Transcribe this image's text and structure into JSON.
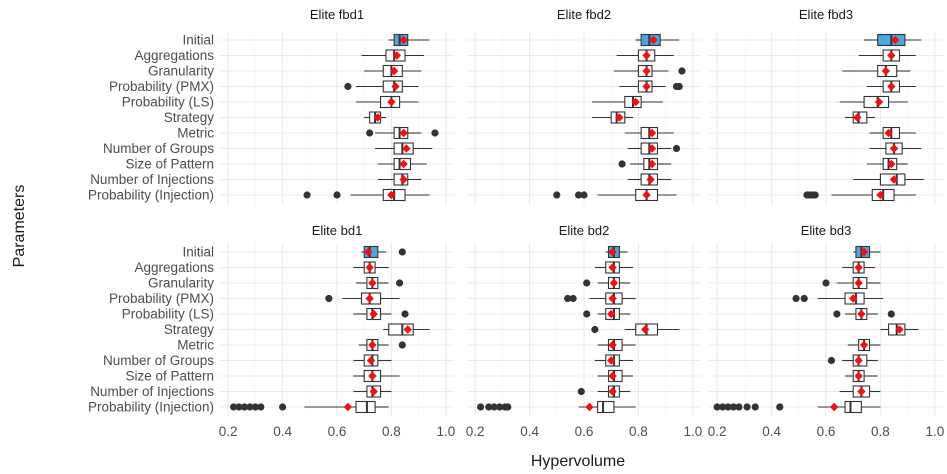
{
  "chart_data": {
    "type": "boxplot",
    "xlabel": "Hypervolume",
    "ylabel": "Parameters",
    "xlim": [
      0.17,
      1.03
    ],
    "x_ticks": [
      "0.2",
      "0.4",
      "0.6",
      "0.8",
      "1.0"
    ],
    "x_tick_values": [
      0.2,
      0.4,
      0.6,
      0.8,
      1.0
    ],
    "categories": [
      "Initial",
      "Aggregations",
      "Granularity",
      "Probability (PMX)",
      "Probability (LS)",
      "Strategy",
      "Metric",
      "Number of Groups",
      "Size of Pattern",
      "Number of Injections",
      "Probability (Injection)"
    ],
    "colors": {
      "initial_fill": "#4da6e0",
      "box_fill": "#ffffff",
      "mean": "#ee1111",
      "outline": "#333333"
    },
    "panels": [
      {
        "title": "Elite fbd1",
        "boxes": [
          {
            "q1": 0.81,
            "median": 0.83,
            "q3": 0.86,
            "lo": 0.79,
            "hi": 0.94,
            "mean": 0.845,
            "outliers": []
          },
          {
            "q1": 0.78,
            "median": 0.81,
            "q3": 0.85,
            "lo": 0.69,
            "hi": 0.92,
            "mean": 0.82,
            "outliers": []
          },
          {
            "q1": 0.77,
            "median": 0.8,
            "q3": 0.84,
            "lo": 0.7,
            "hi": 0.91,
            "mean": 0.81,
            "outliers": []
          },
          {
            "q1": 0.77,
            "median": 0.81,
            "q3": 0.84,
            "lo": 0.67,
            "hi": 0.9,
            "mean": 0.815,
            "outliers": [
              0.64
            ]
          },
          {
            "q1": 0.76,
            "median": 0.8,
            "q3": 0.83,
            "lo": 0.67,
            "hi": 0.9,
            "mean": 0.8,
            "outliers": []
          },
          {
            "q1": 0.72,
            "median": 0.74,
            "q3": 0.76,
            "lo": 0.7,
            "hi": 0.78,
            "mean": 0.75,
            "outliers": []
          },
          {
            "q1": 0.81,
            "median": 0.83,
            "q3": 0.86,
            "lo": 0.74,
            "hi": 0.91,
            "mean": 0.845,
            "outliers": [
              0.72,
              0.96
            ]
          },
          {
            "q1": 0.81,
            "median": 0.84,
            "q3": 0.88,
            "lo": 0.74,
            "hi": 0.95,
            "mean": 0.855,
            "outliers": []
          },
          {
            "q1": 0.81,
            "median": 0.83,
            "q3": 0.87,
            "lo": 0.75,
            "hi": 0.93,
            "mean": 0.845,
            "outliers": []
          },
          {
            "q1": 0.81,
            "median": 0.84,
            "q3": 0.86,
            "lo": 0.75,
            "hi": 0.91,
            "mean": 0.845,
            "outliers": []
          },
          {
            "q1": 0.77,
            "median": 0.81,
            "q3": 0.85,
            "lo": 0.65,
            "hi": 0.94,
            "mean": 0.8,
            "outliers": [
              0.49,
              0.6
            ]
          }
        ]
      },
      {
        "title": "Elite fbd2",
        "boxes": [
          {
            "q1": 0.81,
            "median": 0.84,
            "q3": 0.88,
            "lo": 0.79,
            "hi": 0.95,
            "mean": 0.855,
            "outliers": []
          },
          {
            "q1": 0.8,
            "median": 0.83,
            "q3": 0.86,
            "lo": 0.72,
            "hi": 0.93,
            "mean": 0.83,
            "outliers": []
          },
          {
            "q1": 0.8,
            "median": 0.83,
            "q3": 0.85,
            "lo": 0.71,
            "hi": 0.91,
            "mean": 0.83,
            "outliers": [
              0.96
            ]
          },
          {
            "q1": 0.8,
            "median": 0.83,
            "q3": 0.85,
            "lo": 0.73,
            "hi": 0.9,
            "mean": 0.83,
            "outliers": [
              0.94,
              0.95
            ]
          },
          {
            "q1": 0.75,
            "median": 0.78,
            "q3": 0.81,
            "lo": 0.63,
            "hi": 0.89,
            "mean": 0.79,
            "outliers": []
          },
          {
            "q1": 0.7,
            "median": 0.72,
            "q3": 0.75,
            "lo": 0.63,
            "hi": 0.78,
            "mean": 0.73,
            "outliers": []
          },
          {
            "q1": 0.81,
            "median": 0.84,
            "q3": 0.87,
            "lo": 0.75,
            "hi": 0.93,
            "mean": 0.85,
            "outliers": []
          },
          {
            "q1": 0.81,
            "median": 0.84,
            "q3": 0.87,
            "lo": 0.76,
            "hi": 0.92,
            "mean": 0.85,
            "outliers": [
              0.94
            ]
          },
          {
            "q1": 0.82,
            "median": 0.84,
            "q3": 0.87,
            "lo": 0.77,
            "hi": 0.92,
            "mean": 0.85,
            "outliers": [
              0.74
            ]
          },
          {
            "q1": 0.81,
            "median": 0.84,
            "q3": 0.87,
            "lo": 0.76,
            "hi": 0.92,
            "mean": 0.845,
            "outliers": []
          },
          {
            "q1": 0.79,
            "median": 0.83,
            "q3": 0.87,
            "lo": 0.65,
            "hi": 0.94,
            "mean": 0.83,
            "outliers": [
              0.5,
              0.58,
              0.6
            ]
          }
        ]
      },
      {
        "title": "Elite fbd3",
        "boxes": [
          {
            "q1": 0.79,
            "median": 0.84,
            "q3": 0.89,
            "lo": 0.74,
            "hi": 0.95,
            "mean": 0.855,
            "outliers": []
          },
          {
            "q1": 0.81,
            "median": 0.84,
            "q3": 0.87,
            "lo": 0.72,
            "hi": 0.93,
            "mean": 0.84,
            "outliers": []
          },
          {
            "q1": 0.79,
            "median": 0.82,
            "q3": 0.86,
            "lo": 0.66,
            "hi": 0.91,
            "mean": 0.82,
            "outliers": []
          },
          {
            "q1": 0.81,
            "median": 0.84,
            "q3": 0.87,
            "lo": 0.75,
            "hi": 0.93,
            "mean": 0.84,
            "outliers": []
          },
          {
            "q1": 0.74,
            "median": 0.79,
            "q3": 0.83,
            "lo": 0.65,
            "hi": 0.9,
            "mean": 0.795,
            "outliers": []
          },
          {
            "q1": 0.7,
            "median": 0.72,
            "q3": 0.75,
            "lo": 0.67,
            "hi": 0.78,
            "mean": 0.715,
            "outliers": []
          },
          {
            "q1": 0.81,
            "median": 0.84,
            "q3": 0.87,
            "lo": 0.76,
            "hi": 0.93,
            "mean": 0.83,
            "outliers": []
          },
          {
            "q1": 0.82,
            "median": 0.85,
            "q3": 0.88,
            "lo": 0.76,
            "hi": 0.95,
            "mean": 0.85,
            "outliers": []
          },
          {
            "q1": 0.81,
            "median": 0.83,
            "q3": 0.86,
            "lo": 0.75,
            "hi": 0.9,
            "mean": 0.84,
            "outliers": []
          },
          {
            "q1": 0.8,
            "median": 0.86,
            "q3": 0.89,
            "lo": 0.7,
            "hi": 0.96,
            "mean": 0.85,
            "outliers": []
          },
          {
            "q1": 0.77,
            "median": 0.81,
            "q3": 0.85,
            "lo": 0.62,
            "hi": 0.93,
            "mean": 0.8,
            "outliers": [
              0.53,
              0.54,
              0.55,
              0.56
            ]
          }
        ]
      },
      {
        "title": "Elite bd1",
        "boxes": [
          {
            "q1": 0.7,
            "median": 0.72,
            "q3": 0.75,
            "lo": 0.69,
            "hi": 0.78,
            "mean": 0.715,
            "outliers": [
              0.84
            ]
          },
          {
            "q1": 0.7,
            "median": 0.72,
            "q3": 0.74,
            "lo": 0.66,
            "hi": 0.79,
            "mean": 0.72,
            "outliers": []
          },
          {
            "q1": 0.71,
            "median": 0.73,
            "q3": 0.75,
            "lo": 0.67,
            "hi": 0.79,
            "mean": 0.73,
            "outliers": [
              0.83
            ]
          },
          {
            "q1": 0.69,
            "median": 0.72,
            "q3": 0.76,
            "lo": 0.62,
            "hi": 0.83,
            "mean": 0.72,
            "outliers": [
              0.57
            ]
          },
          {
            "q1": 0.71,
            "median": 0.73,
            "q3": 0.76,
            "lo": 0.66,
            "hi": 0.8,
            "mean": 0.735,
            "outliers": [
              0.85
            ]
          },
          {
            "q1": 0.79,
            "median": 0.84,
            "q3": 0.88,
            "lo": 0.77,
            "hi": 0.94,
            "mean": 0.86,
            "outliers": []
          },
          {
            "q1": 0.71,
            "median": 0.73,
            "q3": 0.75,
            "lo": 0.68,
            "hi": 0.79,
            "mean": 0.73,
            "outliers": [
              0.84
            ]
          },
          {
            "q1": 0.7,
            "median": 0.73,
            "q3": 0.75,
            "lo": 0.66,
            "hi": 0.8,
            "mean": 0.725,
            "outliers": []
          },
          {
            "q1": 0.7,
            "median": 0.73,
            "q3": 0.76,
            "lo": 0.66,
            "hi": 0.83,
            "mean": 0.73,
            "outliers": []
          },
          {
            "q1": 0.71,
            "median": 0.73,
            "q3": 0.76,
            "lo": 0.66,
            "hi": 0.8,
            "mean": 0.735,
            "outliers": []
          },
          {
            "q1": 0.67,
            "median": 0.71,
            "q3": 0.74,
            "lo": 0.48,
            "hi": 0.79,
            "mean": 0.64,
            "outliers": [
              0.22,
              0.24,
              0.26,
              0.28,
              0.3,
              0.32,
              0.4
            ]
          }
        ]
      },
      {
        "title": "Elite bd2",
        "boxes": [
          {
            "q1": 0.69,
            "median": 0.71,
            "q3": 0.73,
            "lo": 0.68,
            "hi": 0.76,
            "mean": 0.705,
            "outliers": []
          },
          {
            "q1": 0.68,
            "median": 0.71,
            "q3": 0.73,
            "lo": 0.64,
            "hi": 0.78,
            "mean": 0.705,
            "outliers": []
          },
          {
            "q1": 0.69,
            "median": 0.71,
            "q3": 0.73,
            "lo": 0.65,
            "hi": 0.77,
            "mean": 0.71,
            "outliers": [
              0.61
            ]
          },
          {
            "q1": 0.68,
            "median": 0.71,
            "q3": 0.74,
            "lo": 0.62,
            "hi": 0.79,
            "mean": 0.705,
            "outliers": [
              0.54,
              0.56
            ]
          },
          {
            "q1": 0.68,
            "median": 0.71,
            "q3": 0.73,
            "lo": 0.65,
            "hi": 0.77,
            "mean": 0.7,
            "outliers": [
              0.61
            ]
          },
          {
            "q1": 0.79,
            "median": 0.83,
            "q3": 0.87,
            "lo": 0.75,
            "hi": 0.95,
            "mean": 0.825,
            "outliers": [
              0.64
            ]
          },
          {
            "q1": 0.69,
            "median": 0.71,
            "q3": 0.74,
            "lo": 0.65,
            "hi": 0.79,
            "mean": 0.705,
            "outliers": []
          },
          {
            "q1": 0.68,
            "median": 0.71,
            "q3": 0.73,
            "lo": 0.64,
            "hi": 0.78,
            "mean": 0.7,
            "outliers": []
          },
          {
            "q1": 0.69,
            "median": 0.71,
            "q3": 0.74,
            "lo": 0.65,
            "hi": 0.78,
            "mean": 0.705,
            "outliers": []
          },
          {
            "q1": 0.69,
            "median": 0.71,
            "q3": 0.73,
            "lo": 0.65,
            "hi": 0.77,
            "mean": 0.705,
            "outliers": [
              0.59
            ]
          },
          {
            "q1": 0.65,
            "median": 0.67,
            "q3": 0.71,
            "lo": 0.58,
            "hi": 0.79,
            "mean": 0.62,
            "outliers": [
              0.22,
              0.25,
              0.27,
              0.29,
              0.31,
              0.32
            ]
          }
        ]
      },
      {
        "title": "Elite bd3",
        "boxes": [
          {
            "q1": 0.71,
            "median": 0.73,
            "q3": 0.76,
            "lo": 0.7,
            "hi": 0.8,
            "mean": 0.74,
            "outliers": []
          },
          {
            "q1": 0.7,
            "median": 0.72,
            "q3": 0.74,
            "lo": 0.66,
            "hi": 0.78,
            "mean": 0.72,
            "outliers": []
          },
          {
            "q1": 0.7,
            "median": 0.72,
            "q3": 0.75,
            "lo": 0.64,
            "hi": 0.8,
            "mean": 0.72,
            "outliers": [
              0.6
            ]
          },
          {
            "q1": 0.67,
            "median": 0.71,
            "q3": 0.74,
            "lo": 0.57,
            "hi": 0.81,
            "mean": 0.7,
            "outliers": [
              0.49,
              0.52
            ]
          },
          {
            "q1": 0.71,
            "median": 0.73,
            "q3": 0.75,
            "lo": 0.67,
            "hi": 0.79,
            "mean": 0.73,
            "outliers": [
              0.64,
              0.84
            ]
          },
          {
            "q1": 0.83,
            "median": 0.86,
            "q3": 0.89,
            "lo": 0.8,
            "hi": 0.94,
            "mean": 0.87,
            "outliers": []
          },
          {
            "q1": 0.72,
            "median": 0.74,
            "q3": 0.76,
            "lo": 0.68,
            "hi": 0.8,
            "mean": 0.74,
            "outliers": []
          },
          {
            "q1": 0.7,
            "median": 0.72,
            "q3": 0.75,
            "lo": 0.66,
            "hi": 0.79,
            "mean": 0.72,
            "outliers": [
              0.62
            ]
          },
          {
            "q1": 0.7,
            "median": 0.72,
            "q3": 0.74,
            "lo": 0.67,
            "hi": 0.79,
            "mean": 0.72,
            "outliers": []
          },
          {
            "q1": 0.7,
            "median": 0.73,
            "q3": 0.76,
            "lo": 0.65,
            "hi": 0.8,
            "mean": 0.73,
            "outliers": []
          },
          {
            "q1": 0.67,
            "median": 0.69,
            "q3": 0.73,
            "lo": 0.57,
            "hi": 0.8,
            "mean": 0.63,
            "outliers": [
              0.2,
              0.22,
              0.24,
              0.26,
              0.28,
              0.31,
              0.34,
              0.43
            ]
          }
        ]
      }
    ]
  }
}
